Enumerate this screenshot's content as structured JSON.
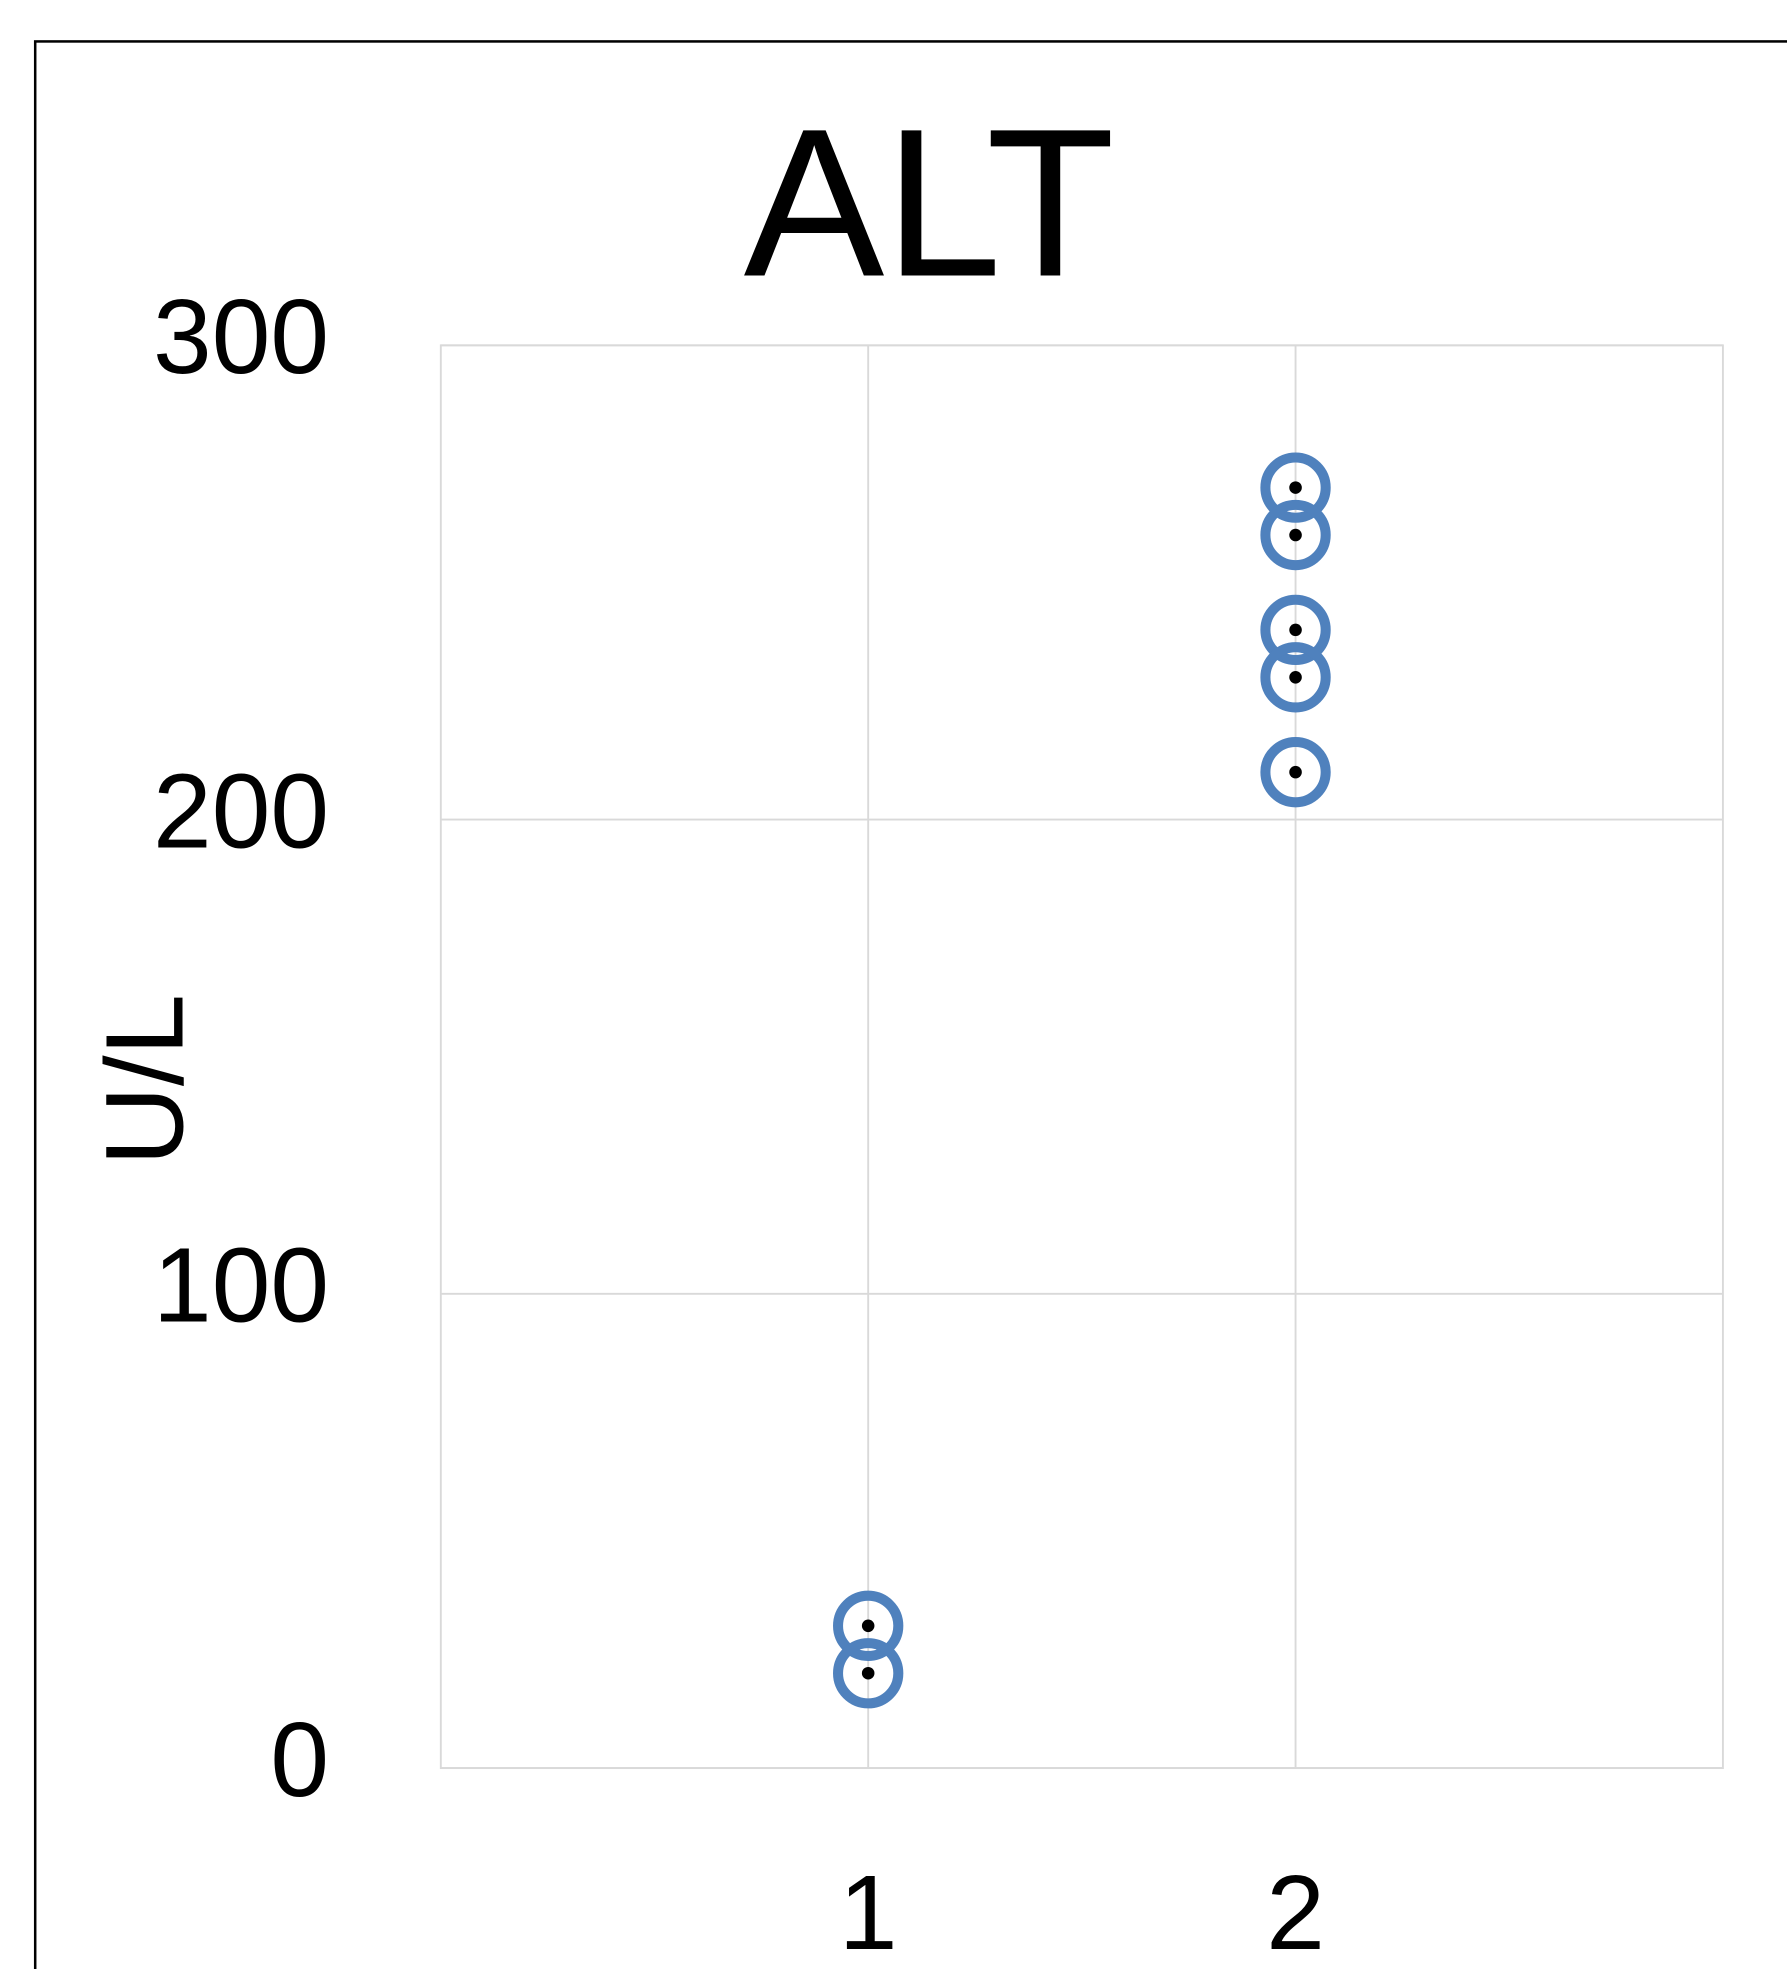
{
  "chart_data": {
    "type": "scatter",
    "title": "ALT",
    "y_label": "U/L",
    "x": [
      1,
      1,
      2,
      2,
      2,
      2,
      2
    ],
    "values": [
      30,
      20,
      270,
      260,
      240,
      230,
      210
    ],
    "color": "#4f81bd",
    "xlim": [
      0,
      3
    ],
    "xticks": [
      1,
      2
    ],
    "ylim": [
      0,
      300
    ],
    "yticks": [
      0,
      100,
      200,
      300
    ],
    "grid": true
  }
}
